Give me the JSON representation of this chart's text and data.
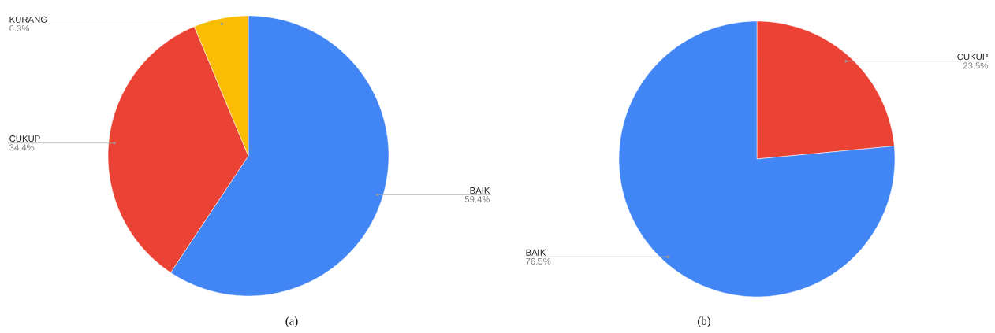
{
  "chart_data": [
    {
      "type": "pie",
      "categories": [
        "BAIK",
        "CUKUP",
        "KURANG"
      ],
      "values": [
        59.4,
        34.4,
        6.3
      ],
      "colors": [
        "#4285f4",
        "#ea4335",
        "#fbbc04"
      ],
      "value_labels": [
        "59.4%",
        "34.4%",
        "6.3%"
      ],
      "annotations": [
        "(a)"
      ]
    },
    {
      "type": "pie",
      "categories": [
        "CUKUP",
        "BAIK"
      ],
      "values": [
        23.5,
        76.5
      ],
      "colors": [
        "#ea4335",
        "#4285f4"
      ],
      "value_labels": [
        "23.5%",
        "76.5%"
      ],
      "annotations": [
        "(b)"
      ]
    }
  ]
}
